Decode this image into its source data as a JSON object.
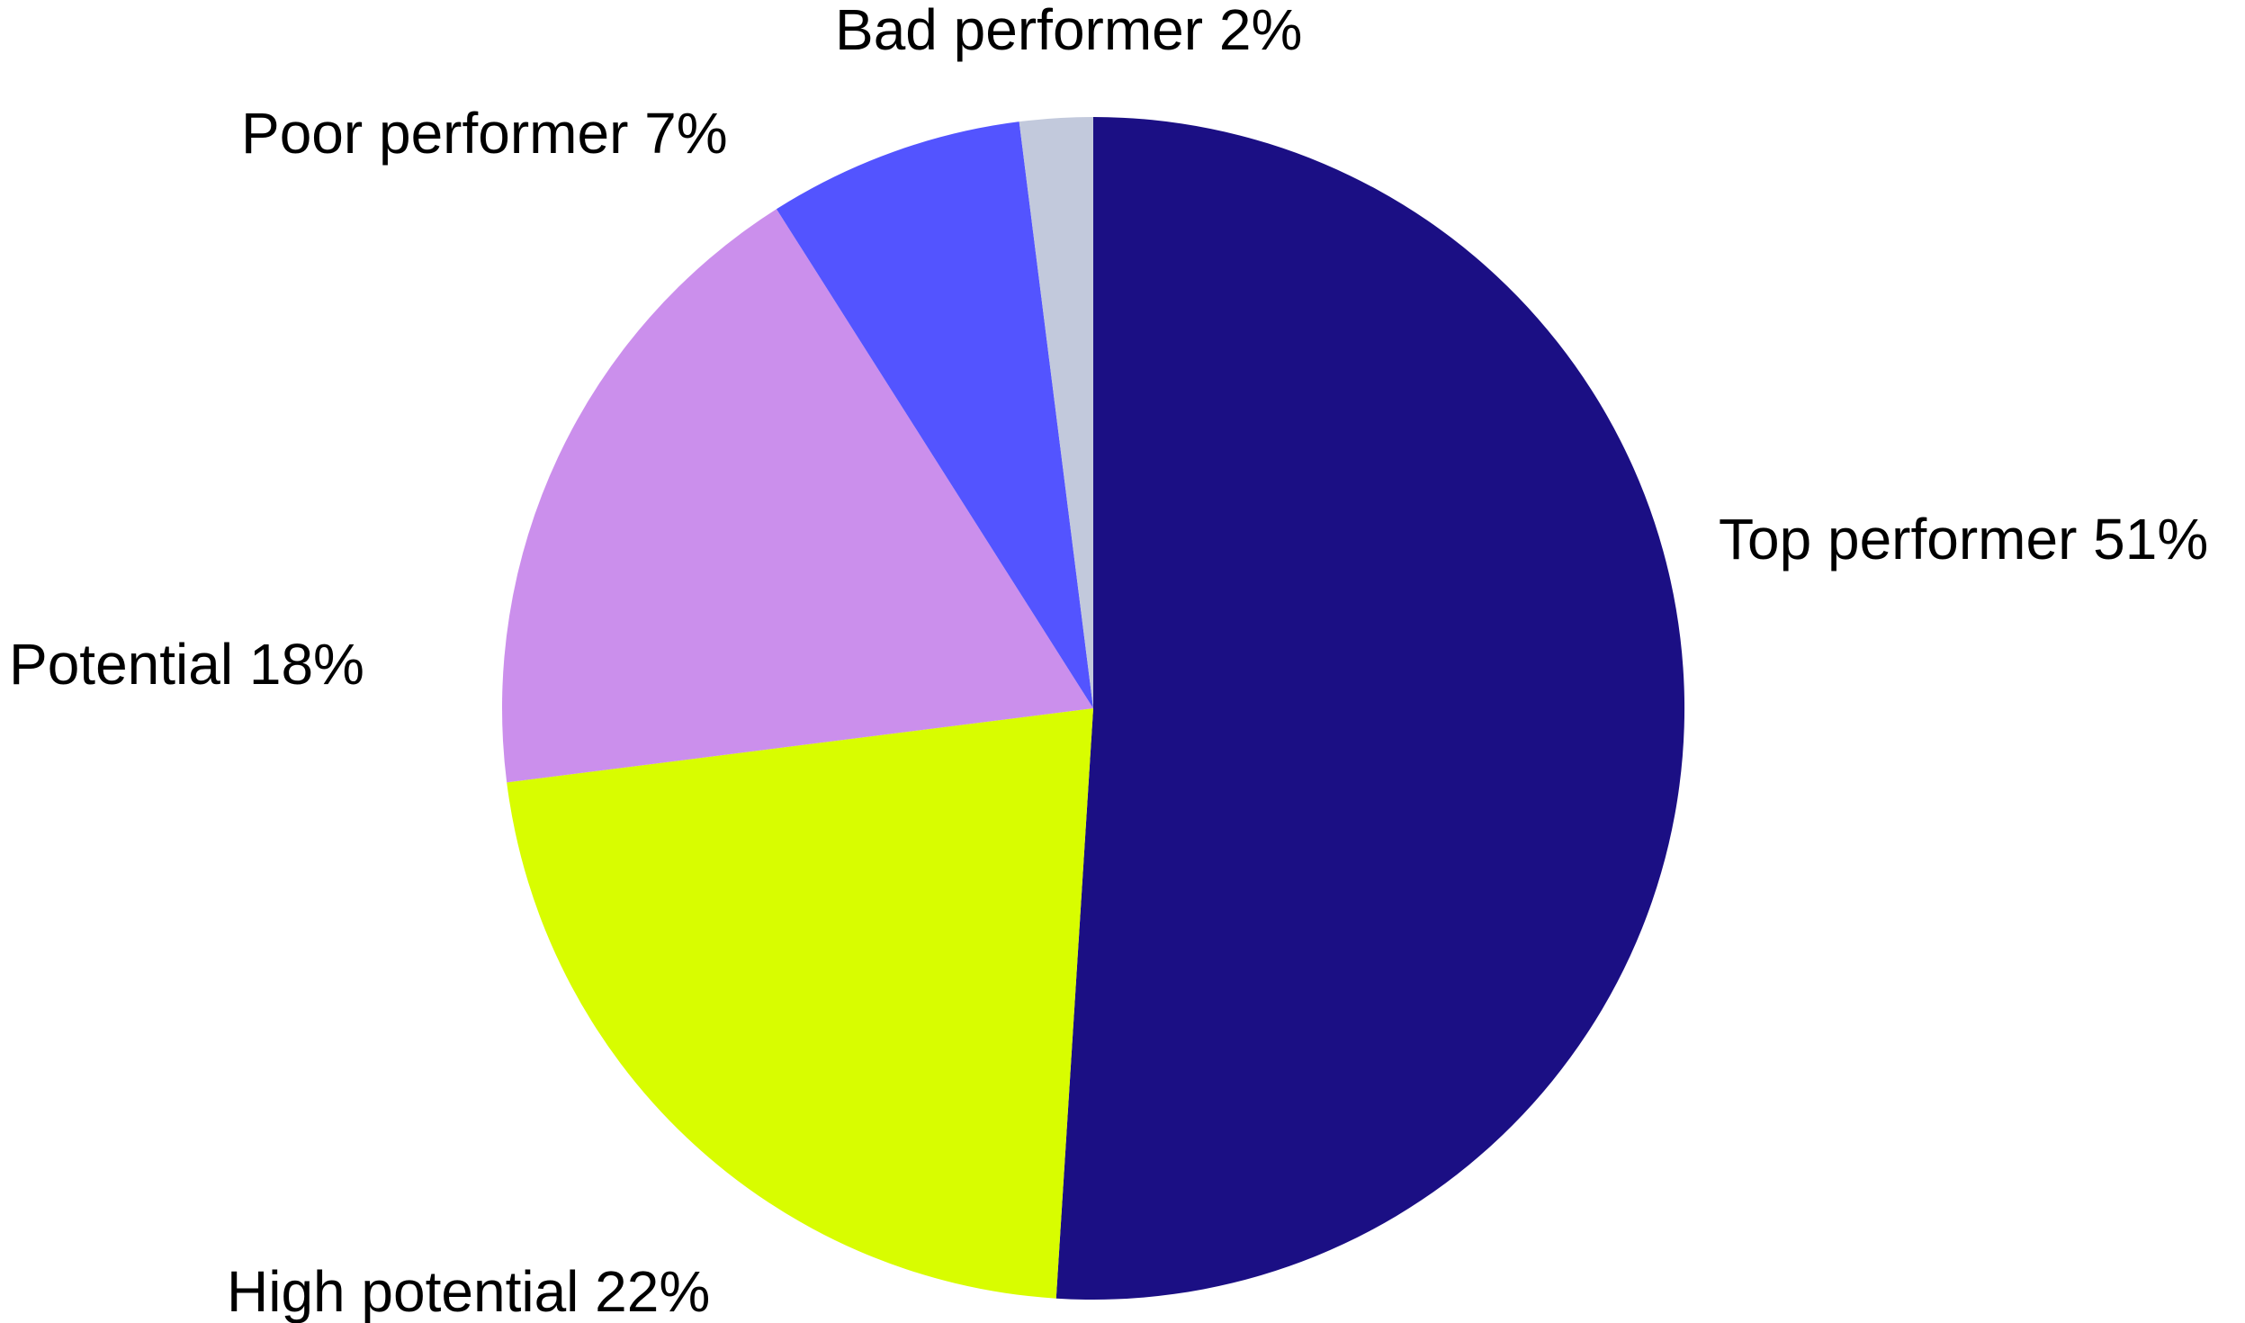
{
  "chart_data": {
    "type": "pie",
    "title": "",
    "start_angle_deg": 0,
    "direction": "clockwise",
    "slices": [
      {
        "label": "Top performer 51%",
        "category": "Top performer",
        "value": 51,
        "color": "#1b0f84"
      },
      {
        "label": "High potential 22%",
        "category": "High potential",
        "value": 22,
        "color": "#d8fd00"
      },
      {
        "label": "Potential 18%",
        "category": "Potential",
        "value": 18,
        "color": "#cb8fec"
      },
      {
        "label": "Poor performer 7%",
        "category": "Poor performer",
        "value": 7,
        "color": "#5354ff"
      },
      {
        "label": "Bad performer 2%",
        "category": "Bad performer",
        "value": 2,
        "color": "#c2c9dc"
      }
    ]
  }
}
